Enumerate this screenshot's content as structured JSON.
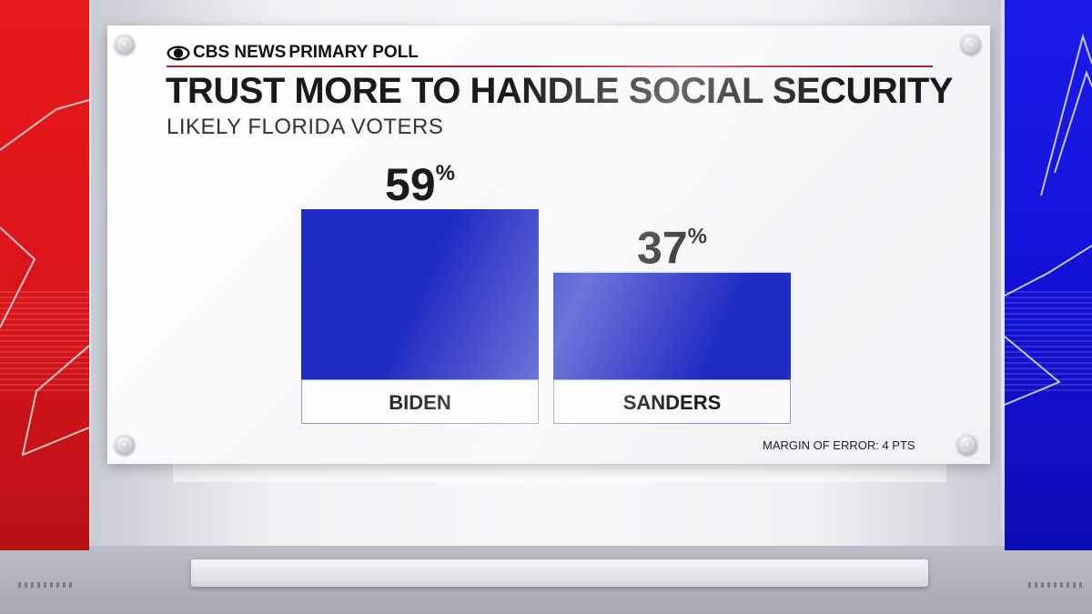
{
  "brand": {
    "network": "CBS NEWS",
    "poll_name": "PRIMARY POLL",
    "logo_icon": "cbs-eye-icon"
  },
  "colors": {
    "bar": "#1f2bc2",
    "left_panel": "#e8191c",
    "right_panel": "#1b1be8",
    "rule": "#b02030"
  },
  "chart_data": {
    "type": "bar",
    "title": "TRUST MORE TO HANDLE SOCIAL SECURITY",
    "subtitle": "LIKELY FLORIDA VOTERS",
    "categories": [
      "BIDEN",
      "SANDERS"
    ],
    "values": [
      59,
      37
    ],
    "value_labels": [
      "59",
      "37"
    ],
    "value_unit": "%",
    "ylim": [
      0,
      60
    ],
    "grid": false,
    "legend": "none"
  },
  "footer": {
    "margin_of_error": "MARGIN OF ERROR: 4 PTS"
  }
}
